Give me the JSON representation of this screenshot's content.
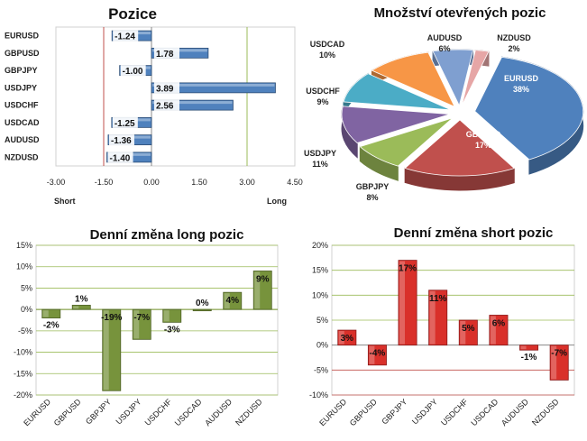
{
  "chart_data": [
    {
      "type": "bar",
      "orientation": "horizontal",
      "title": "Pozice",
      "categories": [
        "EURUSD",
        "GBPUSD",
        "GBPJPY",
        "USDJPY",
        "USDCHF",
        "USDCAD",
        "AUDUSD",
        "NZDUSD"
      ],
      "values": [
        -1.24,
        1.78,
        -1.0,
        3.89,
        2.56,
        -1.25,
        -1.36,
        -1.4
      ],
      "value_labels": [
        "-1.24",
        "1.78",
        "-1.00",
        "3.89",
        "2.56",
        "-1.25",
        "-1.36",
        "-1.40"
      ],
      "xlim": [
        -3.0,
        4.5
      ],
      "xticks": [
        "-3.00",
        "-1.50",
        "0.00",
        "1.50",
        "3.00",
        "4.50"
      ],
      "reference_lines": [
        -1.5,
        3.0
      ],
      "left_label": "Short",
      "right_label": "Long",
      "colors": {
        "bar": "#4f81bd",
        "short_line": "#c0504d",
        "long_line": "#9bbb59"
      }
    },
    {
      "type": "pie",
      "title": "Množství otevřených pozic",
      "slices": [
        {
          "label": "EURUSD",
          "value": 38,
          "display": "38%",
          "color": "#4f81bd"
        },
        {
          "label": "GBPUSD",
          "value": 17,
          "display": "17%",
          "color": "#c0504d"
        },
        {
          "label": "GBPJPY",
          "value": 8,
          "display": "8%",
          "color": "#9bbb59"
        },
        {
          "label": "USDJPY",
          "value": 11,
          "display": "11%",
          "color": "#8064a2"
        },
        {
          "label": "USDCHF",
          "value": 9,
          "display": "9%",
          "color": "#4bacc6"
        },
        {
          "label": "USDCAD",
          "value": 10,
          "display": "10%",
          "color": "#f79646"
        },
        {
          "label": "AUDUSD",
          "value": 6,
          "display": "6%",
          "color": "#7f9fd0"
        },
        {
          "label": "NZDUSD",
          "value": 2,
          "display": "2%",
          "color": "#e6a6a6"
        }
      ]
    },
    {
      "type": "bar",
      "title": "Denní změna long pozic",
      "categories": [
        "EURUSD",
        "GBPUSD",
        "GBPJPY",
        "USDJPY",
        "USDCHF",
        "USDCAD",
        "AUDUSD",
        "NZDUSD"
      ],
      "values": [
        -2,
        1,
        -19,
        -7,
        -3,
        0,
        4,
        9
      ],
      "value_labels": [
        "-2%",
        "1%",
        "-19%",
        "-7%",
        "-3%",
        "0%",
        "4%",
        "9%"
      ],
      "ylim": [
        -20,
        15
      ],
      "yticks": [
        "15%",
        "10%",
        "5%",
        "0%",
        "-5%",
        "-10%",
        "-15%",
        "-20%"
      ],
      "colors": {
        "bar": "#77933c",
        "grid": "#9bbb59"
      }
    },
    {
      "type": "bar",
      "title": "Denní změna short pozic",
      "categories": [
        "EURUSD",
        "GBPUSD",
        "GBPJPY",
        "USDJPY",
        "USDCHF",
        "USDCAD",
        "AUDUSD",
        "NZDUSD"
      ],
      "values": [
        3,
        -4,
        17,
        11,
        5,
        6,
        -1,
        -7
      ],
      "value_labels": [
        "3%",
        "-4%",
        "17%",
        "11%",
        "5%",
        "6%",
        "-1%",
        "-7%"
      ],
      "ylim": [
        -10,
        20
      ],
      "yticks": [
        "20%",
        "15%",
        "10%",
        "5%",
        "0%",
        "-5%",
        "-10%"
      ],
      "colors": {
        "bar": "#d9302a",
        "grid_pos": "#9bbb59",
        "grid_neg": "#c0504d"
      }
    }
  ]
}
